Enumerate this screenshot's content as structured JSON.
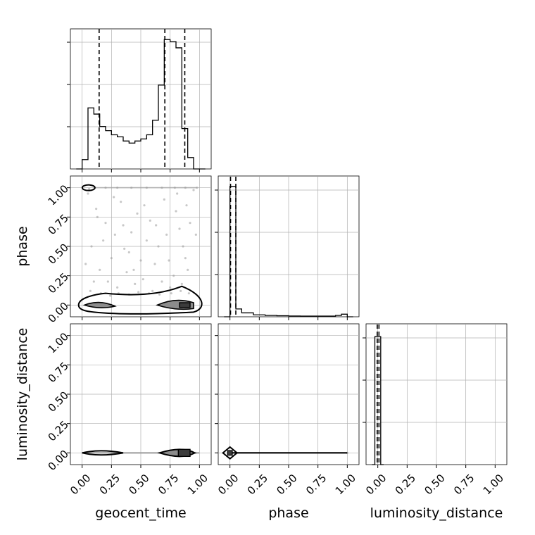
{
  "chart_data": {
    "type": "corner",
    "parameters": [
      "geocent_time",
      "phase",
      "luminosity_distance"
    ],
    "tick_labels": [
      "0.00",
      "0.25",
      "0.50",
      "0.75",
      "1.00"
    ],
    "axis_range": [
      -0.1,
      1.1
    ],
    "grid": true,
    "colors": {
      "line": "#000000",
      "grid": "#b0b0b0",
      "points": "#9a9a9a",
      "contour_fill": "#8c8c8c",
      "contour_fill_dark": "#3c3c3c"
    },
    "histograms": [
      {
        "parameter": "geocent_time",
        "bin_edges": [
          -0.05,
          0.0,
          0.05,
          0.1,
          0.15,
          0.2,
          0.25,
          0.3,
          0.35,
          0.4,
          0.45,
          0.5,
          0.55,
          0.6,
          0.65,
          0.7,
          0.75,
          0.8,
          0.85,
          0.9,
          0.95,
          1.0,
          1.05
        ],
        "counts": [
          0,
          0.045,
          0.295,
          0.265,
          0.205,
          0.185,
          0.165,
          0.155,
          0.135,
          0.125,
          0.135,
          0.145,
          0.165,
          0.235,
          0.405,
          0.625,
          0.615,
          0.585,
          0.195,
          0.055,
          0,
          0
        ],
        "quantiles": [
          0.145,
          0.705,
          0.875
        ],
        "count_max": 0.68
      },
      {
        "parameter": "phase",
        "bin_edges": [
          -0.05,
          0.0,
          0.05,
          0.1,
          0.2,
          0.3,
          0.4,
          0.5,
          0.6,
          0.7,
          0.8,
          0.9,
          0.95,
          1.0,
          1.05
        ],
        "counts": [
          0.0,
          1.0,
          0.06,
          0.03,
          0.015,
          0.01,
          0.008,
          0.006,
          0.005,
          0.005,
          0.005,
          0.01,
          0.02,
          0.0
        ],
        "quantiles": [
          0.005,
          0.05
        ],
        "count_max": 1.08
      },
      {
        "parameter": "luminosity_distance",
        "bin_edges": [
          -0.05,
          -0.025,
          0.0,
          0.025,
          0.05
        ],
        "counts": [
          0.0,
          1.0,
          1.0,
          0.0
        ],
        "quantiles": [
          -0.005,
          0.01
        ],
        "count_max": 1.1
      }
    ],
    "pairs": [
      {
        "x": "geocent_time",
        "y": "phase",
        "points": [
          [
            0.05,
            0.95
          ],
          [
            0.12,
            0.82
          ],
          [
            0.2,
            0.7
          ],
          [
            0.28,
            0.6
          ],
          [
            0.33,
            0.88
          ],
          [
            0.4,
            0.45
          ],
          [
            0.47,
            0.78
          ],
          [
            0.55,
            0.55
          ],
          [
            0.62,
            0.35
          ],
          [
            0.7,
            0.9
          ],
          [
            0.78,
            0.25
          ],
          [
            0.83,
            0.65
          ],
          [
            0.88,
            0.4
          ],
          [
            0.15,
            0.3
          ],
          [
            0.22,
            0.2
          ],
          [
            0.3,
            0.15
          ],
          [
            0.38,
            0.28
          ],
          [
            0.45,
            0.18
          ],
          [
            0.52,
            0.22
          ],
          [
            0.6,
            0.12
          ],
          [
            0.68,
            0.2
          ],
          [
            0.75,
            0.15
          ],
          [
            0.85,
            0.18
          ],
          [
            0.9,
            0.3
          ],
          [
            0.08,
            0.5
          ],
          [
            0.1,
            0.2
          ],
          [
            0.18,
            0.55
          ],
          [
            0.25,
            0.4
          ],
          [
            0.35,
            0.68
          ],
          [
            0.42,
            0.62
          ],
          [
            0.5,
            0.38
          ],
          [
            0.58,
            0.72
          ],
          [
            0.65,
            0.5
          ],
          [
            0.72,
            0.6
          ],
          [
            0.8,
            0.8
          ],
          [
            0.86,
            0.5
          ],
          [
            0.92,
            0.7
          ],
          [
            0.95,
            0.98
          ],
          [
            0.03,
            0.35
          ],
          [
            0.13,
            0.75
          ],
          [
            0.27,
            0.92
          ],
          [
            0.36,
            0.48
          ],
          [
            0.44,
            0.3
          ],
          [
            0.53,
            0.85
          ],
          [
            0.63,
            0.68
          ],
          [
            0.74,
            0.38
          ],
          [
            0.81,
            0.95
          ],
          [
            0.89,
            0.85
          ],
          [
            0.97,
            0.6
          ],
          [
            0.07,
            0.12
          ],
          [
            0.16,
            0.1
          ],
          [
            0.24,
            0.08
          ],
          [
            0.31,
            0.1
          ],
          [
            0.4,
            0.09
          ],
          [
            0.48,
            0.11
          ],
          [
            0.57,
            0.1
          ],
          [
            0.66,
            0.09
          ],
          [
            0.76,
            0.1
          ],
          [
            0.84,
            0.12
          ],
          [
            0.91,
            0.1
          ],
          [
            0.06,
            0.99
          ],
          [
            0.11,
            1.0
          ],
          [
            0.2,
            1.0
          ],
          [
            0.3,
            1.0
          ],
          [
            0.42,
            1.0
          ],
          [
            0.55,
            1.0
          ],
          [
            0.68,
            1.0
          ],
          [
            0.79,
            1.0
          ],
          [
            0.88,
            1.0
          ],
          [
            0.98,
            1.0
          ]
        ],
        "contour_fill": [
          [
            0.1,
            0.0
          ],
          [
            0.18,
            0.0
          ],
          [
            0.26,
            -0.01
          ]
        ],
        "contour_fill_dark": [
          [
            0.82,
            0.0
          ],
          [
            0.9,
            0.0
          ]
        ]
      },
      {
        "x": "geocent_time",
        "y": "luminosity_distance",
        "points": [
          [
            0.03,
            0.0
          ],
          [
            0.97,
            0.0
          ]
        ]
      },
      {
        "x": "phase",
        "y": "luminosity_distance",
        "points": [
          [
            0.0,
            0.0
          ],
          [
            1.0,
            0.0
          ]
        ]
      }
    ]
  }
}
